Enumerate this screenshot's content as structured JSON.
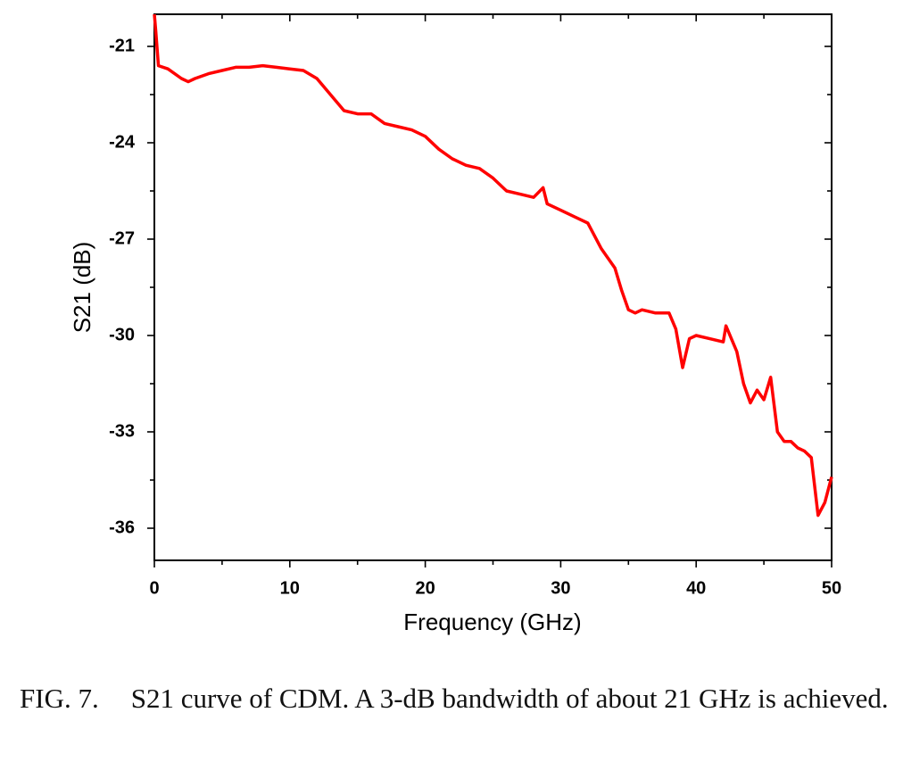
{
  "chart_data": {
    "type": "line",
    "x_label": "Frequency (GHz)",
    "y_label": "S21 (dB)",
    "xlim": [
      0,
      50
    ],
    "xticks": [
      0,
      10,
      20,
      30,
      40,
      50
    ],
    "ylim": [
      -37,
      -20
    ],
    "yticks": [
      -21,
      -24,
      -27,
      -30,
      -33,
      -36
    ],
    "series": [
      {
        "color": "#ff0000",
        "x": [
          0,
          0.1,
          0.3,
          1,
          2,
          2.5,
          3,
          4,
          5,
          6,
          7,
          8,
          9,
          10,
          11,
          12,
          13,
          14,
          15,
          16,
          17,
          18,
          19,
          20,
          21,
          22,
          23,
          24,
          25,
          26,
          27,
          28,
          28.7,
          29,
          30,
          31,
          32,
          33,
          34,
          34.5,
          35,
          35.5,
          36,
          37,
          38,
          38.5,
          39,
          39.5,
          40,
          41,
          42,
          42.2,
          43,
          43.5,
          44,
          44.5,
          45,
          45.5,
          46,
          46.5,
          47,
          47.5,
          48,
          48.5,
          49,
          49.5,
          50
        ],
        "values": [
          -20,
          -20.5,
          -21.6,
          -21.7,
          -22,
          -22.1,
          -22,
          -21.85,
          -21.75,
          -21.65,
          -21.65,
          -21.6,
          -21.65,
          -21.7,
          -21.75,
          -22,
          -22.5,
          -23,
          -23.1,
          -23.1,
          -23.4,
          -23.5,
          -23.6,
          -23.8,
          -24.2,
          -24.5,
          -24.7,
          -24.8,
          -25.1,
          -25.5,
          -25.6,
          -25.7,
          -25.4,
          -25.9,
          -26.1,
          -26.3,
          -26.5,
          -27.3,
          -27.9,
          -28.6,
          -29.2,
          -29.3,
          -29.2,
          -29.3,
          -29.3,
          -29.8,
          -31,
          -30.1,
          -30,
          -30.1,
          -30.2,
          -29.7,
          -30.5,
          -31.5,
          -32.1,
          -31.7,
          -32,
          -31.3,
          -33,
          -33.3,
          -33.3,
          -33.5,
          -33.6,
          -33.8,
          -35.6,
          -35.2,
          -34.4
        ]
      }
    ]
  },
  "caption": {
    "label": "FIG. 7.",
    "text": "S21 curve of CDM. A 3-dB bandwidth of about 21 GHz is achieved."
  }
}
